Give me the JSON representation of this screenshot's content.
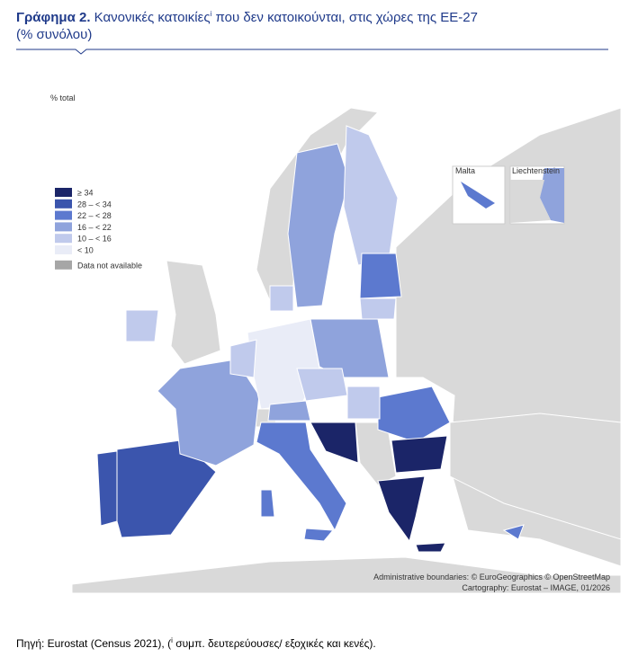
{
  "header": {
    "title_label": "Γράφημα 2.",
    "title": "Κανονικές κατοικίες",
    "title_sup": "i",
    "title_rest": "που δεν κατοικούνται, στις χώρες της ΕΕ-27",
    "subtitle": "(% συνόλου)"
  },
  "map": {
    "unit": "% total",
    "legend": [
      {
        "label": "≥ 34",
        "color": "#1b2568"
      },
      {
        "label": "28 – < 34",
        "color": "#3b55ad"
      },
      {
        "label": "22 – < 28",
        "color": "#5c79cf"
      },
      {
        "label": "16 – < 22",
        "color": "#8fa3dc"
      },
      {
        "label": "10 – < 16",
        "color": "#c0caec"
      },
      {
        "label": "< 10",
        "color": "#e9ecf7"
      },
      {
        "label": "Data not available",
        "color": "#a6a6a6"
      }
    ],
    "insets": [
      "Malta",
      "Liechtenstein"
    ],
    "credits": [
      "Administrative boundaries: © EuroGeographics © OpenStreetMap",
      "Cartography: Eurostat – IMAGE, 01/2026"
    ]
  },
  "source": {
    "text": "Πηγή: Eurostat (Census 2021), (",
    "sup": "i",
    "rest": "συμπ. δευτερεύουσες/ εξοχικές και κενές)."
  }
}
